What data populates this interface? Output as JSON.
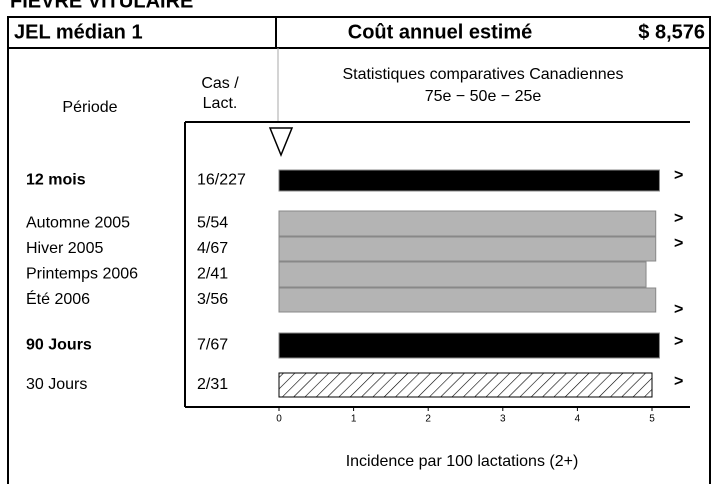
{
  "header": {
    "banner": "FIÈVRE VITULAIRE",
    "left": "JEL médian 1",
    "center": "Coût annuel estimé",
    "right": "$ 8,576"
  },
  "columns": {
    "period": "Période",
    "cases": "Cas /\nLact.",
    "stats": "Statistiques comparatives Canadiennes",
    "stats_sub": "75e − 50e − 25e"
  },
  "chart_data": {
    "type": "bar",
    "orientation": "horizontal",
    "x_label": "Incidence par 100 lactations (2+)",
    "categories": [
      "12 mois",
      "Automne 2005",
      "Hiver 2005",
      "Printemps 2006",
      "Été 2006",
      "90 Jours",
      "30 Jours"
    ],
    "cases": [
      "16/227",
      "5/54",
      "4/67",
      "2/41",
      "3/56",
      "7/67",
      "2/31"
    ],
    "bold": [
      true,
      false,
      false,
      false,
      false,
      true,
      false
    ],
    "values": [
      5.1,
      5.05,
      5.05,
      4.92,
      5.05,
      5.1,
      5.0
    ],
    "colors": [
      "#000000",
      "#b4b4b4",
      "#b4b4b4",
      "#b4b4b4",
      "#b4b4b4",
      "#000000",
      "hatched"
    ],
    "flags": [
      ">",
      ">",
      ">",
      null,
      ">",
      ">",
      ">"
    ],
    "xlim": [
      0,
      5
    ],
    "xticks": [
      0,
      1,
      2,
      3,
      4,
      5
    ]
  }
}
